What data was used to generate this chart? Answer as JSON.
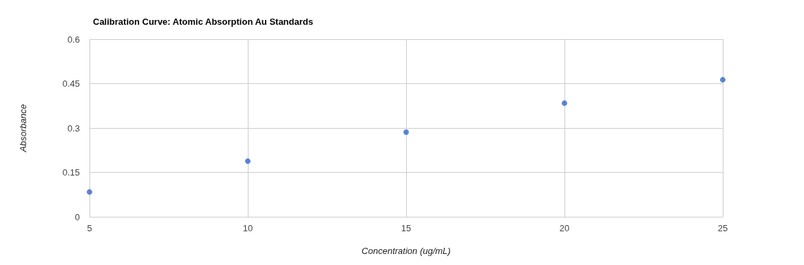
{
  "chart_data": {
    "type": "scatter",
    "title": "Calibration Curve: Atomic Absorption Au Standards",
    "xlabel": "Concentration (ug/mL)",
    "ylabel": "Absorbance",
    "x": [
      5,
      10,
      15,
      20,
      25
    ],
    "series": [
      {
        "color": "#3366cc",
        "values": [
          0.084,
          0.188,
          0.286,
          0.384,
          0.463
        ]
      }
    ],
    "xlim": [
      5,
      25
    ],
    "xticks": [
      5,
      10,
      15,
      20,
      25
    ],
    "ylim": [
      0,
      0.6
    ],
    "yticks": [
      0,
      0.15,
      0.3,
      0.45,
      0.6
    ],
    "grid": true,
    "marker": "circle"
  }
}
